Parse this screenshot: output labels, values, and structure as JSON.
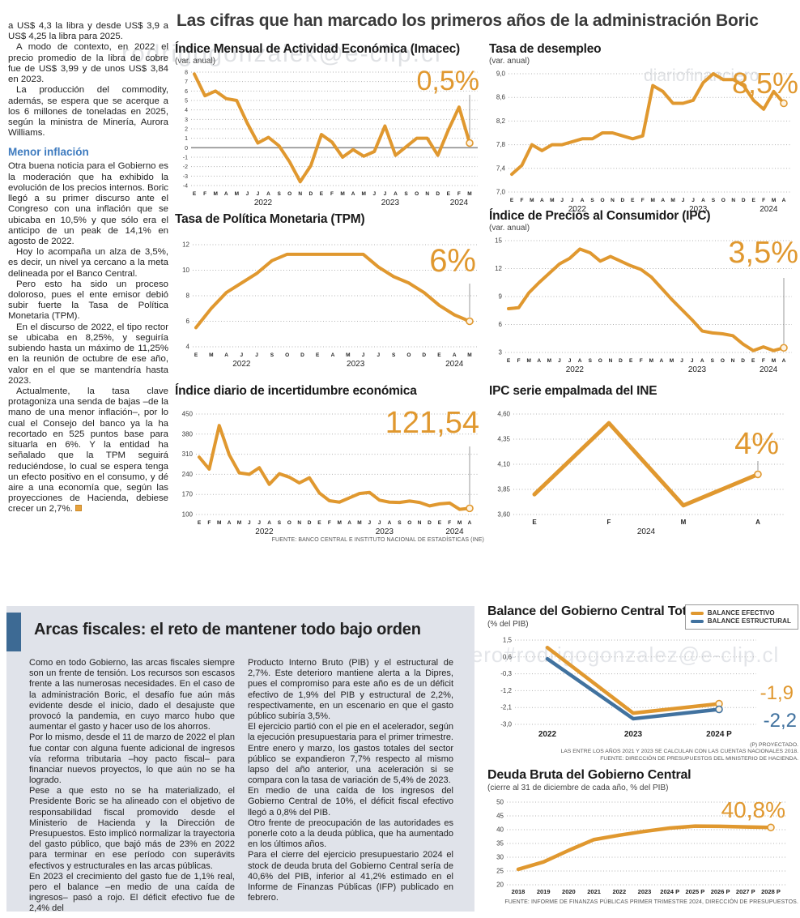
{
  "page": {
    "headline": "Las cifras que han marcado los primeros años de la administración Boric"
  },
  "watermarks": [
    {
      "text": "rodrigogonzalek@e-clip.cl"
    },
    {
      "text": "diariofinanciero"
    },
    {
      "text": "diariofinanciero#rodrigogonzalez@e-clip.cl"
    }
  ],
  "left_column": {
    "paragraphs_top": [
      "a US$ 4,3 la libra y desde US$ 3,9 a US$ 4,25 la libra para 2025.",
      "A modo de contexto, en 2022 el precio promedio de la libra de cobre fue de US$ 3,99 y de unos US$ 3,84 en 2023.",
      "La producción del commodity, además, se espera que se acerque a los 6 millones de toneladas en 2025, según la ministra de Minería, Aurora Williams."
    ],
    "subhead": "Menor inflación",
    "paragraphs_bottom": [
      "Otra buena noticia para el Gobierno es la moderación que ha exhibido la evolución de los precios internos. Boric llegó a su primer discurso ante el Congreso con una inflación que se ubicaba en 10,5% y que sólo era el anticipo de un peak de 14,1% en agosto de 2022.",
      "Hoy lo acompaña un alza de 3,5%, es decir, un nivel ya cercano a la meta delineada por el Banco Central.",
      "Pero esto ha sido un proceso doloroso, pues el ente emisor debió subir fuerte la Tasa de Política Monetaria (TPM).",
      "En el discurso de 2022, el tipo rector se ubicaba en 8,25%, y seguiría subiendo hasta un máximo de 11,25% en la reunión de octubre de ese año, valor en el que se mantendría hasta 2023.",
      "Actualmente, la tasa clave protagoniza una senda de bajas –de la mano de una menor inflación–, por lo cual el Consejo del banco ya la ha recortado en 525 puntos base para situarla en 6%. Y la entidad ha señalado que la TPM seguirá reduciéndose, lo cual se espera tenga un efecto positivo en el consumo, y dé aire a una economía que, según las proyecciones de Hacienda, debiese crecer un 2,7%."
    ]
  },
  "fiscal_box": {
    "title": "Arcas fiscales: el reto de mantener todo bajo orden",
    "col1": [
      "Como en todo Gobierno, las arcas fiscales siempre son un frente de tensión. Los recursos son escasos frente a las numerosas necesidades. En el caso de la administración Boric, el desafío fue aún más evidente desde el inicio, dado el desajuste que provocó la pandemia, en cuyo marco hubo que aumentar el gasto y hacer uso de los ahorros.",
      "Por lo mismo, desde el 11 de marzo de 2022 el plan fue contar con alguna fuente adicional de ingresos vía reforma tributaria –hoy pacto fiscal– para financiar nuevos proyectos, lo que aún no se ha logrado.",
      "Pese a que esto no se ha materializado, el Presidente Boric se ha alineado con el objetivo de responsabilidad fiscal promovido desde el Ministerio de Hacienda y la Dirección de Presupuestos. Esto implicó normalizar la trayectoria del gasto público, que bajó más de 23% en 2022 para terminar en ese período con superávits efectivos y estructurales en las arcas públicas.",
      "En 2023 el crecimiento del gasto fue de 1,1% real, pero el balance –en medio de una caída de ingresos– pasó a rojo. El déficit efectivo fue de 2,4% del"
    ],
    "col2": [
      "Producto Interno Bruto (PIB) y el estructural de 2,7%. Este deterioro mantiene alerta a la Dipres, pues el compromiso para este año es de un déficit efectivo de 1,9% del PIB y estructural de 2,2%, respectivamente, en un escenario en que el gasto público subiría 3,5%.",
      "El ejercicio partió con el pie en el acelerador, según la ejecución presupuestaria para el primer trimestre. Entre enero y marzo, los gastos totales del sector público se expandieron 7,7% respecto al mismo lapso del año anterior, una aceleración si se compara con la tasa de variación de 5,4% de 2023.",
      "En medio de una caída de los ingresos del Gobierno Central de 10%, el déficit fiscal efectivo llegó a 0,8% del PIB.",
      "Otro frente de preocupación de las autoridades es ponerle coto a la deuda pública, que ha aumentado en los últimos años.",
      "Para el cierre del ejercicio presupuestario 2024 el stock de deuda bruta del Gobierno Central sería de 40,6% del PIB, inferior al 41,2% estimado en el Informe de Finanzas Públicas (IFP) publicado en febrero."
    ]
  },
  "colors": {
    "accent_orange": "#e0982f",
    "accent_blue": "#41729f",
    "subhead_blue": "#3e7bbf",
    "box_background": "#e0e3ea",
    "box_bar": "#3d6a94"
  },
  "chart_data": [
    {
      "id": "imacec",
      "type": "line",
      "title": "Índice Mensual de Actividad Económica (Imacec)",
      "subtitle": "(var. anual)",
      "big_value": "0,5%",
      "color": "#e0982f",
      "ylim": [
        -4,
        8
      ],
      "yticks": [
        8,
        7,
        6,
        5,
        4,
        3,
        2,
        1,
        0,
        -1,
        -2,
        -3,
        -4
      ],
      "ytick_labels": [
        "8",
        "7",
        "6",
        "5",
        "4",
        "3",
        "2",
        "1",
        "0",
        "-1",
        "-2",
        "-3",
        "-4"
      ],
      "ytick_size": 7,
      "zero_line": true,
      "x_labels": [
        "E",
        "F",
        "M",
        "A",
        "M",
        "J",
        "J",
        "A",
        "S",
        "O",
        "N",
        "D",
        "E",
        "F",
        "M",
        "A",
        "M",
        "J",
        "J",
        "A",
        "S",
        "O",
        "N",
        "D",
        "E",
        "F",
        "M"
      ],
      "year_labels": [
        {
          "text": "2022",
          "i": 6.5
        },
        {
          "text": "2023",
          "i": 18.5
        },
        {
          "text": "2024",
          "i": 25
        }
      ],
      "values": [
        7.8,
        5.5,
        6.0,
        5.2,
        5.0,
        2.6,
        0.5,
        1.1,
        0.2,
        -1.5,
        -3.6,
        -1.9,
        1.4,
        0.6,
        -1.0,
        -0.2,
        -0.9,
        -0.4,
        2.3,
        -0.8,
        0.1,
        1.0,
        1.0,
        -0.8,
        1.9,
        4.3,
        0.5
      ],
      "marker_line": true,
      "marker_top": 34,
      "pad": {
        "l": 20,
        "r": 14,
        "t": 6,
        "b": 26
      },
      "inset": 4,
      "stroke": 4
    },
    {
      "id": "desempleo",
      "type": "line",
      "title": "Tasa de desempleo",
      "subtitle": "(var. anual)",
      "big_value": "8,5%",
      "color": "#e0982f",
      "ylim": [
        7.0,
        9.0
      ],
      "yticks": [
        9.0,
        8.6,
        8.2,
        7.8,
        7.4,
        7.0
      ],
      "ytick_labels": [
        "9,0",
        "8,6",
        "8,2",
        "7,8",
        "7,4",
        "7,0"
      ],
      "ytick_size": 8,
      "x_labels": [
        "E",
        "F",
        "M",
        "A",
        "M",
        "J",
        "J",
        "A",
        "S",
        "O",
        "N",
        "D",
        "E",
        "F",
        "M",
        "A",
        "M",
        "J",
        "J",
        "A",
        "S",
        "O",
        "N",
        "D",
        "E",
        "F",
        "M",
        "A"
      ],
      "year_labels": [
        {
          "text": "2022",
          "i": 6.5
        },
        {
          "text": "2023",
          "i": 18.5
        },
        {
          "text": "2024",
          "i": 25.5
        }
      ],
      "values": [
        7.3,
        7.45,
        7.8,
        7.7,
        7.8,
        7.8,
        7.85,
        7.9,
        7.9,
        8.0,
        8.0,
        7.95,
        7.9,
        7.95,
        8.8,
        8.7,
        8.5,
        8.5,
        8.55,
        8.85,
        9.0,
        8.9,
        8.9,
        8.8,
        8.55,
        8.4,
        8.7,
        8.5
      ],
      "marker_line": true,
      "marker_top": 42,
      "pad": {
        "l": 24,
        "r": 14,
        "t": 8,
        "b": 26
      },
      "inset": 4,
      "stroke": 4
    },
    {
      "id": "tpm",
      "type": "line",
      "title": "Tasa de Política Monetaria (TPM)",
      "subtitle": "",
      "big_value": "6%",
      "color": "#e0982f",
      "ylim": [
        4,
        12
      ],
      "yticks": [
        12,
        10,
        8,
        6,
        4
      ],
      "ytick_labels": [
        "12",
        "10",
        "8",
        "6",
        "4"
      ],
      "ytick_size": 8,
      "x_labels": [
        "E",
        "M",
        "A",
        "J",
        "J",
        "S",
        "O",
        "D",
        "E",
        "A",
        "M",
        "J",
        "J",
        "S",
        "O",
        "D",
        "E",
        "A",
        "M"
      ],
      "year_labels": [
        {
          "text": "2022",
          "i": 3
        },
        {
          "text": "2023",
          "i": 10.5
        },
        {
          "text": "2024",
          "i": 17
        }
      ],
      "values": [
        5.5,
        7.0,
        8.25,
        9.0,
        9.75,
        10.75,
        11.25,
        11.25,
        11.25,
        11.25,
        11.25,
        11.25,
        10.25,
        9.5,
        9.0,
        8.25,
        7.25,
        6.5,
        6.0
      ],
      "marker_line": true,
      "marker_top": 56,
      "pad": {
        "l": 22,
        "r": 14,
        "t": 8,
        "b": 26
      },
      "inset": 4,
      "stroke": 4
    },
    {
      "id": "ipc",
      "type": "line",
      "title": "Índice de Precios al Consumidor (IPC)",
      "subtitle": "(var. anual)",
      "big_value": "3,5%",
      "color": "#e0982f",
      "ylim": [
        3,
        15
      ],
      "yticks": [
        15,
        12,
        9,
        6,
        3
      ],
      "ytick_labels": [
        "15",
        "12",
        "9",
        "6",
        "3"
      ],
      "ytick_size": 8,
      "x_labels": [
        "E",
        "F",
        "M",
        "A",
        "M",
        "J",
        "J",
        "A",
        "S",
        "O",
        "N",
        "D",
        "E",
        "F",
        "M",
        "A",
        "M",
        "J",
        "J",
        "A",
        "S",
        "O",
        "N",
        "D",
        "E",
        "F",
        "M",
        "A"
      ],
      "year_labels": [
        {
          "text": "2022",
          "i": 6.5
        },
        {
          "text": "2023",
          "i": 18.5
        },
        {
          "text": "2024",
          "i": 25.5
        }
      ],
      "values": [
        7.7,
        7.8,
        9.4,
        10.5,
        11.5,
        12.5,
        13.1,
        14.1,
        13.7,
        12.8,
        13.3,
        12.8,
        12.3,
        11.9,
        11.1,
        9.9,
        8.7,
        7.6,
        6.5,
        5.3,
        5.1,
        5.0,
        4.8,
        3.9,
        3.2,
        3.6,
        3.2,
        3.5
      ],
      "marker_line": true,
      "marker_top": 54,
      "pad": {
        "l": 20,
        "r": 14,
        "t": 8,
        "b": 26
      },
      "inset": 4,
      "stroke": 4
    },
    {
      "id": "incertidumbre",
      "type": "line",
      "title": "Índice diario de incertidumbre económica",
      "subtitle": "",
      "big_value": "121,54",
      "color": "#e0982f",
      "ylim": [
        100,
        450
      ],
      "yticks": [
        450,
        380,
        310,
        240,
        170,
        100
      ],
      "ytick_labels": [
        "450",
        "380",
        "310",
        "240",
        "170",
        "100"
      ],
      "ytick_size": 8,
      "x_labels": [
        "E",
        "F",
        "M",
        "A",
        "M",
        "J",
        "J",
        "A",
        "S",
        "O",
        "N",
        "D",
        "E",
        "F",
        "M",
        "A",
        "M",
        "J",
        "J",
        "A",
        "S",
        "O",
        "N",
        "D",
        "E",
        "F",
        "M",
        "A"
      ],
      "year_labels": [
        {
          "text": "2022",
          "i": 6.5
        },
        {
          "text": "2023",
          "i": 18.5
        },
        {
          "text": "2024",
          "i": 25.5
        }
      ],
      "values": [
        300,
        258,
        410,
        308,
        245,
        240,
        263,
        205,
        242,
        230,
        210,
        228,
        175,
        148,
        143,
        158,
        173,
        177,
        150,
        143,
        142,
        147,
        142,
        130,
        137,
        140,
        118,
        121.54
      ],
      "source": "FUENTE: BANCO CENTRAL E INSTITUTO NACIONAL DE ESTADÍSTICAS (INE)",
      "marker_line": true,
      "marker_top": 48,
      "pad": {
        "l": 26,
        "r": 14,
        "t": 8,
        "b": 26
      },
      "inset": 4,
      "stroke": 4
    },
    {
      "id": "empalmada",
      "type": "line",
      "title": "IPC serie empalmada del INE",
      "subtitle": "",
      "big_value": "4%",
      "color": "#e0982f",
      "ylim": [
        3.6,
        4.6
      ],
      "yticks": [
        4.6,
        4.35,
        4.1,
        3.85,
        3.6
      ],
      "ytick_labels": [
        "4,60",
        "4,35",
        "4,10",
        "3,85",
        "3,60"
      ],
      "ytick_size": 8,
      "x_labels": [
        "E",
        "F",
        "M",
        "A"
      ],
      "x_label_size": 8,
      "year_labels": [
        {
          "text": "2024",
          "i": 1.5
        }
      ],
      "values": [
        3.8,
        4.51,
        3.69,
        4.0
      ],
      "marker_line": true,
      "marker_top": 66,
      "pad": {
        "l": 30,
        "r": 24,
        "t": 8,
        "b": 26
      },
      "inset": 26,
      "stroke": 5
    },
    {
      "id": "balance",
      "type": "line",
      "title": "Balance del Gobierno Central Total",
      "subtitle": "(% del PIB)",
      "legend": [
        {
          "label": "BALANCE EFECTIVO",
          "color": "#e0982f"
        },
        {
          "label": "BALANCE ESTRUCTURAL",
          "color": "#41729f"
        }
      ],
      "ylim": [
        -3.0,
        1.5
      ],
      "yticks": [
        1.5,
        0.6,
        -0.3,
        -1.2,
        -2.1,
        -3.0
      ],
      "ytick_labels": [
        "1,5",
        "0,6",
        "-0,3",
        "-1,2",
        "-2,1",
        "-3,0"
      ],
      "ytick_size": 8,
      "x_labels": [
        "2022",
        "2023",
        "2024 P"
      ],
      "x_label_size": 10,
      "series": [
        {
          "name": "BALANCE EFECTIVO",
          "color": "#e0982f",
          "values": [
            1.1,
            -2.4,
            -1.9
          ]
        },
        {
          "name": "BALANCE ESTRUCTURAL",
          "color": "#41729f",
          "values": [
            0.5,
            -2.7,
            -2.2
          ]
        }
      ],
      "end_labels": [
        {
          "text": "-1,9",
          "color": "#e0982f"
        },
        {
          "text": "-2,2",
          "color": "#41729f"
        }
      ],
      "notes": [
        "(P) PROYECTADO.",
        "LAS ENTRE LOS AÑOS 2021 Y 2023 SE CALCULAN CON LAS CUENTAS NACIONALES 2018.",
        "FUENTE: DIRECCIÓN DE PRESUPUESTOS DEL MINISTERIO DE HACIENDA."
      ],
      "pad": {
        "l": 34,
        "r": 58,
        "t": 8,
        "b": 20
      },
      "inset": 40,
      "stroke": 4.5
    },
    {
      "id": "deuda",
      "type": "line",
      "title": "Deuda Bruta del Gobierno Central",
      "subtitle": "(cierre al 31 de diciembre de cada año, % del PIB)",
      "big_value": "40,8%",
      "color": "#e0982f",
      "ylim": [
        20,
        50
      ],
      "yticks": [
        50,
        45,
        40,
        35,
        30,
        25,
        20
      ],
      "ytick_labels": [
        "50",
        "45",
        "40",
        "35",
        "30",
        "25",
        "20"
      ],
      "ytick_size": 8,
      "x_labels": [
        "2018",
        "2019",
        "2020",
        "2021",
        "2022",
        "2023",
        "2024 P",
        "2025 P",
        "2026 P",
        "2027 P",
        "2028 P"
      ],
      "x_label_size": 7.5,
      "values": [
        25.6,
        28.3,
        32.5,
        36.4,
        38.0,
        39.4,
        40.6,
        41.3,
        41.2,
        41.0,
        40.8
      ],
      "source": "FUENTE: INFORME DE FINANZAS PÚBLICAS PRIMER TRIMESTRE 2024, DIRECCIÓN DE PRESUPUESTOS.",
      "pad": {
        "l": 24,
        "r": 20,
        "t": 8,
        "b": 16
      },
      "inset": 14,
      "stroke": 4.5
    }
  ]
}
